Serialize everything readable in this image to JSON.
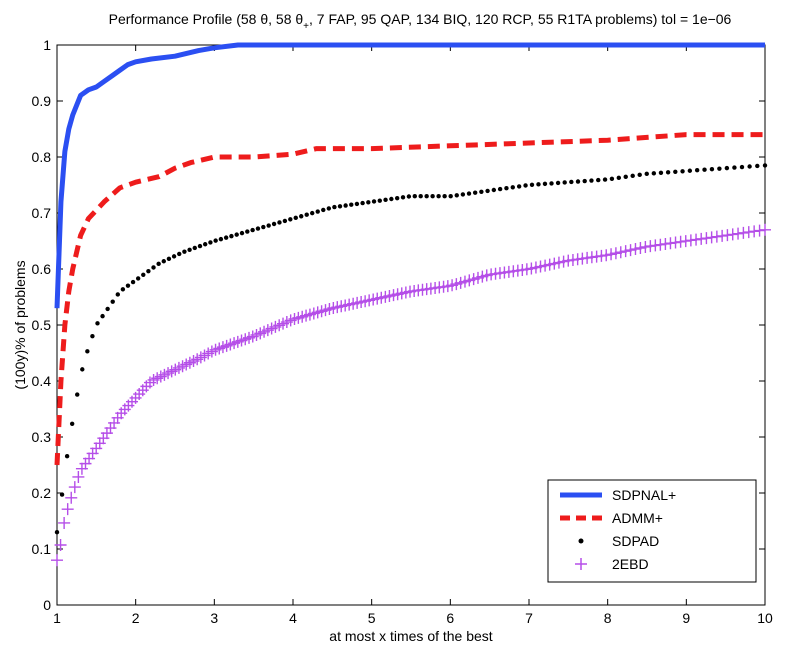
{
  "chart_data": {
    "type": "line",
    "title": "Performance Profile (58 θ, 58 θ+, 7 FAP, 95 QAP, 134 BIQ, 120 RCP, 55 R1TA problems) tol = 1e−06",
    "title_parts": {
      "prefix": "Performance Profile (58  θ, 58 θ",
      "subscript": "+",
      "suffix": ", 7 FAP, 95 QAP, 134 BIQ, 120 RCP, 55 R1TA problems) tol = 1e−06"
    },
    "xlabel": "at most x times of the best",
    "ylabel": "(100y)% of problems",
    "xlim": [
      1,
      10
    ],
    "ylim": [
      0,
      1
    ],
    "xticks": [
      1,
      2,
      3,
      4,
      5,
      6,
      7,
      8,
      9,
      10
    ],
    "yticks": [
      0,
      0.1,
      0.2,
      0.3,
      0.4,
      0.5,
      0.6,
      0.7,
      0.8,
      0.9,
      1
    ],
    "ytick_labels": [
      "0",
      "0.1",
      "0.2",
      "0.3",
      "0.4",
      "0.5",
      "0.6",
      "0.7",
      "0.8",
      "0.9",
      "1"
    ],
    "legend_position": "bottom-right",
    "series": [
      {
        "name": "SDPNAL+",
        "style": "solid",
        "color": "#2b4ff2",
        "x": [
          1.0,
          1.05,
          1.1,
          1.15,
          1.2,
          1.3,
          1.4,
          1.5,
          1.6,
          1.7,
          1.8,
          1.9,
          2.0,
          2.2,
          2.5,
          2.8,
          3.0,
          3.3,
          4.0,
          6.0,
          8.0,
          10.0
        ],
        "y": [
          0.53,
          0.72,
          0.81,
          0.85,
          0.875,
          0.91,
          0.92,
          0.925,
          0.935,
          0.945,
          0.955,
          0.965,
          0.97,
          0.975,
          0.98,
          0.99,
          0.995,
          1.0,
          1.0,
          1.0,
          1.0,
          1.0
        ]
      },
      {
        "name": "ADMM+",
        "style": "dashed",
        "color": "#ee1c1c",
        "x": [
          1.0,
          1.05,
          1.1,
          1.15,
          1.2,
          1.3,
          1.4,
          1.6,
          1.8,
          2.0,
          2.3,
          2.5,
          2.7,
          3.0,
          3.5,
          4.0,
          4.3,
          5.0,
          6.0,
          7.0,
          8.0,
          9.0,
          10.0
        ],
        "y": [
          0.25,
          0.4,
          0.5,
          0.56,
          0.6,
          0.66,
          0.69,
          0.72,
          0.745,
          0.755,
          0.765,
          0.78,
          0.79,
          0.8,
          0.8,
          0.805,
          0.815,
          0.815,
          0.82,
          0.825,
          0.83,
          0.84,
          0.84
        ]
      },
      {
        "name": "SDPAD",
        "style": "dots",
        "color": "#000000",
        "x": [
          1.0,
          1.05,
          1.1,
          1.2,
          1.3,
          1.4,
          1.5,
          1.6,
          1.8,
          2.0,
          2.3,
          2.6,
          3.0,
          3.5,
          4.0,
          4.5,
          5.0,
          5.5,
          6.0,
          6.5,
          7.0,
          7.5,
          8.0,
          8.5,
          9.0,
          9.5,
          10.0
        ],
        "y": [
          0.13,
          0.18,
          0.24,
          0.33,
          0.41,
          0.46,
          0.5,
          0.52,
          0.56,
          0.58,
          0.61,
          0.63,
          0.65,
          0.67,
          0.69,
          0.71,
          0.72,
          0.73,
          0.73,
          0.74,
          0.75,
          0.755,
          0.76,
          0.77,
          0.775,
          0.78,
          0.785
        ]
      },
      {
        "name": "2EBD",
        "style": "plus",
        "color": "#b54ee8",
        "x": [
          1.0,
          1.05,
          1.1,
          1.2,
          1.3,
          1.4,
          1.5,
          1.6,
          1.8,
          2.0,
          2.2,
          2.5,
          2.8,
          3.0,
          3.5,
          4.0,
          4.5,
          5.0,
          5.5,
          6.0,
          6.5,
          7.0,
          7.5,
          8.0,
          8.5,
          9.0,
          9.5,
          10.0
        ],
        "y": [
          0.08,
          0.11,
          0.155,
          0.2,
          0.24,
          0.26,
          0.28,
          0.3,
          0.34,
          0.37,
          0.4,
          0.42,
          0.44,
          0.455,
          0.48,
          0.51,
          0.53,
          0.545,
          0.56,
          0.57,
          0.59,
          0.6,
          0.615,
          0.625,
          0.64,
          0.65,
          0.66,
          0.67
        ]
      }
    ]
  }
}
